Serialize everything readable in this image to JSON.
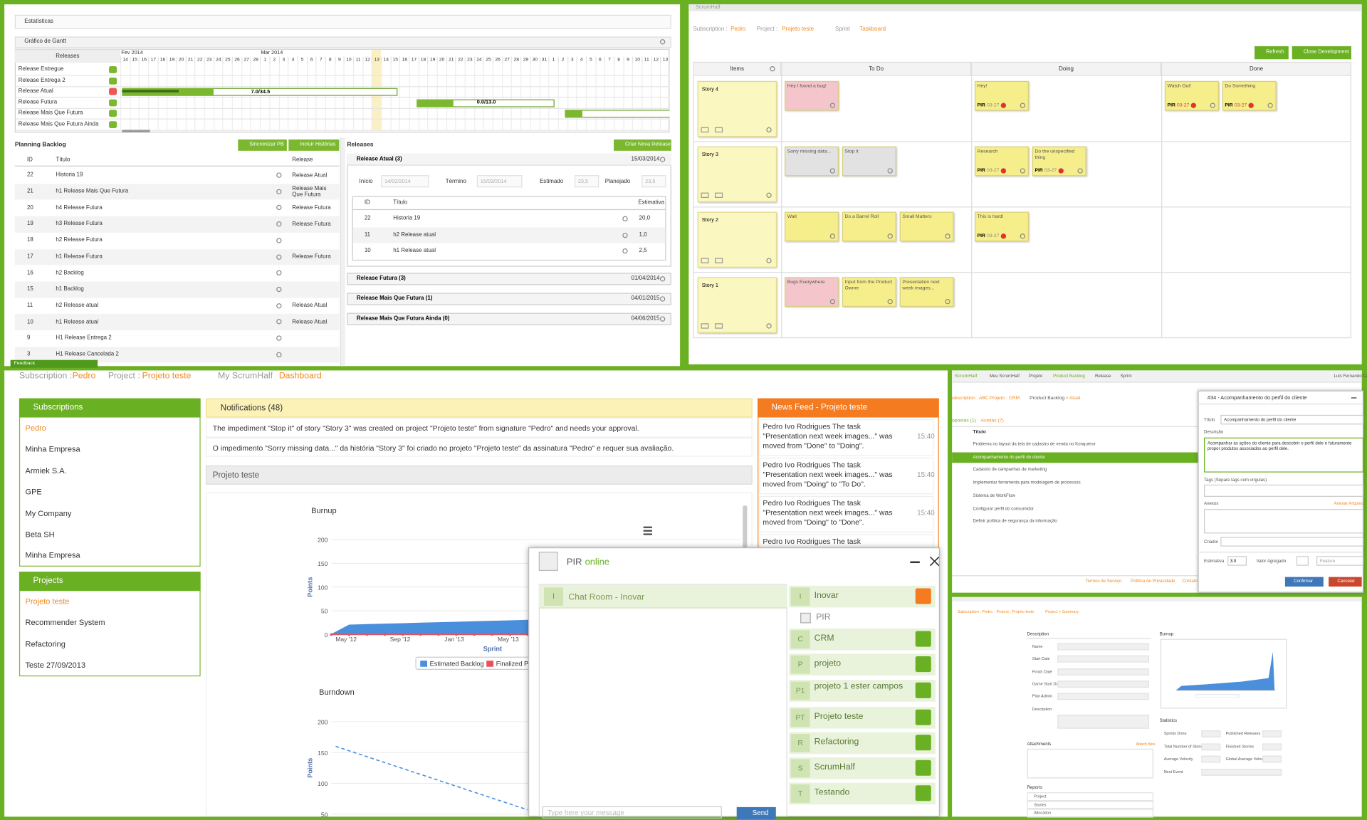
{
  "gantt": {
    "section": "Estatísticas",
    "title": "Gráfico de Gantt",
    "releases_header": "Releases",
    "months": [
      "Fev 2014",
      "Mar 2014"
    ],
    "days": [
      14,
      15,
      16,
      17,
      18,
      19,
      20,
      21,
      22,
      23,
      24,
      25,
      26,
      27,
      28,
      1,
      2,
      3,
      4,
      5,
      6,
      7,
      8,
      9,
      10,
      11,
      12,
      13,
      14,
      15,
      16,
      17,
      18,
      19,
      20,
      21,
      22,
      23,
      24,
      25,
      26,
      27,
      28,
      29,
      30,
      31,
      1,
      2,
      3,
      4,
      5,
      6,
      7,
      8,
      9,
      10,
      11,
      12,
      13
    ],
    "rows": [
      "Release Entregue",
      "Release Entrega 2",
      "Release Atual",
      "Release Futura",
      "Release Mais Que Futura",
      "Release Mais Que Futura Ainda"
    ],
    "bar_labels": [
      "7.0/34.5",
      "0.0/13.0"
    ]
  },
  "planning": {
    "title": "Planning Backlog",
    "buttons": [
      "Sincronizar PB",
      "Incluir Histórias"
    ],
    "columns": [
      "ID",
      "Título",
      "Release"
    ],
    "rows": [
      {
        "id": 22,
        "title": "Historia 19",
        "release": "Release Atual"
      },
      {
        "id": 21,
        "title": "h1 Release Mais Que Futura",
        "release": "Release Mais Que Futura"
      },
      {
        "id": 20,
        "title": "h4 Release Futura",
        "release": "Release Futura"
      },
      {
        "id": 19,
        "title": "h3 Release Futura",
        "release": "Release Futura"
      },
      {
        "id": 18,
        "title": "h2 Release Futura"
      },
      {
        "id": 17,
        "title": "h1 Release Futura",
        "release": "Release Futura"
      },
      {
        "id": 16,
        "title": "h2 Backlog"
      },
      {
        "id": 15,
        "title": "h1 Backlog"
      },
      {
        "id": 11,
        "title": "h2 Release atual",
        "release": "Release Atual"
      },
      {
        "id": 10,
        "title": "h1 Release atual",
        "release": "Release Atual"
      },
      {
        "id": 9,
        "title": "H1 Release Entrega 2"
      },
      {
        "id": 3,
        "title": "H1 Release Cancelada 2"
      }
    ],
    "feedback": "Feedback"
  },
  "releases": {
    "title": "Releases",
    "button": "Criar Nova Release",
    "current": {
      "name": "Release Atual (3)",
      "date": "15/03/2014",
      "fields": [
        {
          "label": "Início",
          "value": "14/02/2014"
        },
        {
          "label": "Término",
          "value": "15/03/2014"
        },
        {
          "label": "Estimado",
          "value": "23,5"
        },
        {
          "label": "Planejado",
          "value": "23,5"
        }
      ],
      "columns": [
        "ID",
        "Título",
        "Estimativa"
      ],
      "rows": [
        {
          "id": 22,
          "title": "Historia 19",
          "estimate": "20,0"
        },
        {
          "id": 11,
          "title": "h2 Release atual",
          "estimate": "1,0"
        },
        {
          "id": 10,
          "title": "h1 Release atual",
          "estimate": "2,5"
        }
      ]
    },
    "others": [
      {
        "name": "Release Futura (3)",
        "date": "01/04/2014"
      },
      {
        "name": "Release Mais Que Futura (1)",
        "date": "04/01/2015"
      },
      {
        "name": "Release Mais Que Futura Ainda (0)",
        "date": "04/06/2015"
      }
    ]
  },
  "taskboard": {
    "logo": "ScrumHalf",
    "breadcrumb": [
      "Subscription :",
      "Pedro",
      "Project :",
      "Projeto teste",
      "Sprint",
      "Taskboard"
    ],
    "buttons": [
      "Refresh",
      "Close Development"
    ],
    "columns": [
      "Items",
      "To Do",
      "Doing",
      "Done"
    ],
    "stories": [
      {
        "name": "Story 4",
        "todo": [
          {
            "text": "Hey I found a bug!",
            "color": "#f4c6cc"
          }
        ],
        "doing": [
          {
            "text": "Hey!",
            "color": "#f6ee8a",
            "owner": "PIR",
            "date": "03-27"
          }
        ],
        "done": [
          {
            "text": "Watch Out!",
            "color": "#f6ee8a",
            "owner": "PIR",
            "date": "03-27"
          },
          {
            "text": "Do Something",
            "color": "#f6ee8a",
            "owner": "PIR",
            "date": "03-27"
          }
        ]
      },
      {
        "name": "Story 3",
        "todo": [
          {
            "text": "Sorry missing data...",
            "color": "#e2e2e2"
          },
          {
            "text": "Stop it",
            "color": "#e2e2e2"
          }
        ],
        "doing": [
          {
            "text": "Research",
            "color": "#f6ee8a",
            "owner": "PIR",
            "date": "03-27"
          },
          {
            "text": "Do the unspecified thing",
            "color": "#f6ee8a",
            "owner": "PIR",
            "date": "03-27"
          }
        ],
        "done": []
      },
      {
        "name": "Story 2",
        "todo": [
          {
            "text": "Wait",
            "color": "#f6ee8a"
          },
          {
            "text": "Do a Barrel Roll",
            "color": "#f6ee8a"
          },
          {
            "text": "Small Matters",
            "color": "#f6ee8a"
          }
        ],
        "doing": [
          {
            "text": "This is hard!",
            "color": "#f6ee8a",
            "owner": "PIR",
            "date": "03-27"
          }
        ],
        "done": []
      },
      {
        "name": "Story 1",
        "todo": [
          {
            "text": "Bugs Everywhere",
            "color": "#f4c6cc"
          },
          {
            "text": "Input from the Product Owner",
            "color": "#f6ee8a"
          },
          {
            "text": "Presentation next week images...",
            "color": "#f6ee8a"
          }
        ],
        "doing": [],
        "done": []
      }
    ]
  },
  "dashboard": {
    "breadcrumb": [
      "Subscription :",
      "Pedro",
      "Project :",
      "Projeto teste",
      "My ScrumHalf",
      "Dashboard"
    ],
    "subscriptions": {
      "title": "Subscriptions",
      "items": [
        "Pedro",
        "Minha Empresa",
        "Armiek S.A.",
        "GPE",
        "My Company",
        "Beta SH",
        "Minha Empresa"
      ]
    },
    "projects": {
      "title": "Projects",
      "items": [
        "Projeto teste",
        "Recommender System",
        "Refactoring",
        "Teste 27/09/2013"
      ]
    },
    "notifications": {
      "title": "Notifications (48)",
      "items": [
        "The impediment \"Stop it\" of story \"Story 3\" was created on project \"Projeto teste\" from signature \"Pedro\" and needs your approval.",
        "O impedimento \"Sorry missing data...\" da história \"Story 3\" foi criado no projeto \"Projeto teste\" da assinatura \"Pedro\" e requer sua avaliação."
      ]
    },
    "project_title": "Projeto teste",
    "news": {
      "title": "News Feed - Projeto teste",
      "items": [
        {
          "text": "Pedro Ivo Rodrigues The task \"Presentation next week images...\" was moved from \"Done\" to \"Doing\".",
          "time": "15:40"
        },
        {
          "text": "Pedro Ivo Rodrigues The task \"Presentation next week images...\" was moved from \"Doing\" to \"To Do\".",
          "time": "15:40"
        },
        {
          "text": "Pedro Ivo Rodrigues The task \"Presentation next week images...\" was moved from \"Doing\" to \"Done\".",
          "time": "15:40"
        },
        {
          "text": "Pedro Ivo Rodrigues The task \"Presentation"
        }
      ]
    }
  },
  "chart_data": [
    {
      "type": "area",
      "title": "Burnup",
      "xlabel": "Sprint",
      "ylabel": "Points",
      "xtick_labels": [
        "May '12",
        "Sep '12",
        "Jan '13",
        "May '13"
      ],
      "ylim": [
        0,
        200
      ],
      "yticks": [
        0,
        50,
        100,
        150,
        200
      ],
      "grid": true,
      "series": [
        {
          "name": "Estimated Backlog",
          "color": "#4a8fdc",
          "values": [
            0,
            20,
            21,
            22,
            23,
            24,
            25,
            26,
            27,
            28,
            29,
            30
          ]
        },
        {
          "name": "Finalized P",
          "color": "#e8505b",
          "values": [
            0,
            0,
            0,
            0,
            0,
            0,
            0,
            0,
            0,
            0,
            0,
            0
          ]
        }
      ]
    },
    {
      "type": "line",
      "title": "Burndown",
      "ylabel": "Points",
      "ylim": [
        50,
        200
      ],
      "yticks": [
        50,
        100,
        150,
        200
      ],
      "grid": true,
      "series": [
        {
          "color": "#4a8fdc",
          "dashed": true,
          "values": [
            160,
            57
          ]
        }
      ]
    }
  ],
  "chat": {
    "user": "PIR",
    "status": "online",
    "room_initial": "I",
    "room": "Chat Room - Inovar",
    "rooms": [
      {
        "initial": "I",
        "name": "Inovar"
      },
      {
        "member": "PIR"
      },
      {
        "initial": "C",
        "name": "CRM"
      },
      {
        "initial": "P",
        "name": "projeto"
      },
      {
        "initial": "P1",
        "name": "projeto 1 ester campos"
      },
      {
        "initial": "PT",
        "name": "Projeto teste"
      },
      {
        "initial": "R",
        "name": "Refactoring"
      },
      {
        "initial": "S",
        "name": "ScrumHalf"
      },
      {
        "initial": "T",
        "name": "Testando"
      }
    ],
    "placeholder": "Type here your message",
    "send": "Send"
  },
  "backlog_window": {
    "logo": "ScrumHalf",
    "nav": [
      "Meu ScrumHalf",
      "Projeto",
      "Product Backlog",
      "Release",
      "Sprint"
    ],
    "user": "Luis Fernando Ca",
    "breadcrumb": [
      "ubscription : ABC",
      "Projeto : CRM",
      "Product Backlog",
      "> Atual"
    ],
    "tabs": [
      "opostas (1)",
      "Aceitas (7)"
    ],
    "list_header": "Título",
    "items": [
      "Problema no layout da tela de cadastro de venda no Konqueror",
      "Acompanhamento do perfil do cliente",
      "Cadastro de campanhas de marketing",
      "Implementar ferramenta para modelagem de processos",
      "Sistema de WorkFlow",
      "Configurar perfil do consumidor",
      "Definir política de segurança da informação"
    ],
    "footer": [
      "Termos de Serviço",
      "Política de Privacidade",
      "Contato"
    ],
    "modal": {
      "title": "#34 - Acompanhamento do perfil do cliente",
      "title_label": "Título",
      "title_value": "Acompanhamento do perfil do cliente",
      "description_label": "Descrição",
      "description": "Acompanhar as ações do cliente para descobrir o perfil dele e futuramente propor produtos associados ao perfil dele.",
      "tags_label": "Tags (Separe tags com vírgulas)",
      "attachments_label": "Anexos",
      "attach": "Anexar Arquivo",
      "creator_label": "Criador",
      "estimate_label": "Estimativa",
      "estimate": "3.0",
      "value_label": "Valor Agregado",
      "type": "Feature",
      "confirm": "Confirmar",
      "cancel": "Cancelar"
    }
  },
  "summary_window": {
    "breadcrumb": [
      "Subscription : Pedro",
      "Project : Projeto teste",
      "Project > Summary"
    ],
    "description_title": "Description",
    "fields": [
      "Name",
      "Start Date",
      "Finish Date",
      "Game Start Date",
      "Plan Admin",
      "Description"
    ],
    "attachments": "Attachments",
    "attach": "Attach files",
    "reports": "Reports",
    "report_items": [
      "Project",
      "Stories",
      "Allocation"
    ],
    "burnup": "Burnup",
    "statistics": "Statistics",
    "stats_left": [
      "Sprints Done",
      "Total Number of Stories",
      "Average Velocity",
      "Next Event"
    ],
    "stats_right": [
      "Published Releases",
      "Finished Stories",
      "Global Average Velocity"
    ]
  }
}
